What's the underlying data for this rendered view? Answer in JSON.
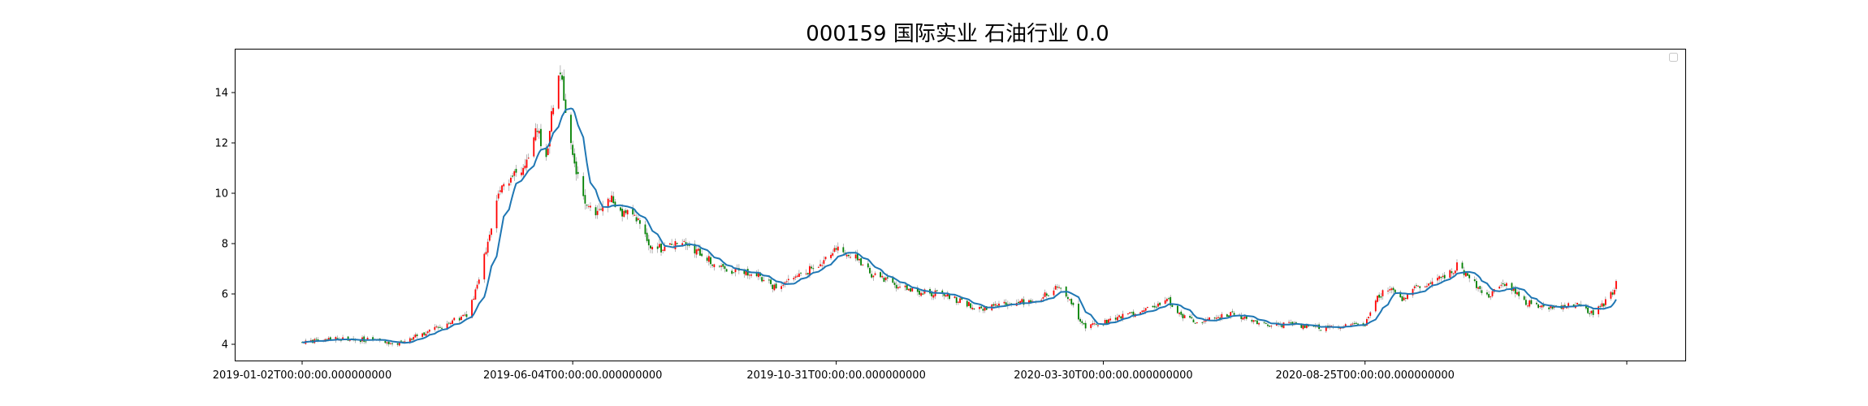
{
  "chart_data": {
    "type": "candlestick",
    "title": "000159 国际实业 石油行业 0.0",
    "xlabel": "",
    "ylabel": "",
    "ylim": [
      3.3,
      15.6
    ],
    "y_ticks": [
      4,
      6,
      8,
      10,
      12,
      14
    ],
    "x_ticks": [
      {
        "label": "2019-01-02T00:00:00.000000000",
        "date": "2019-01-02"
      },
      {
        "label": "2019-06-04T00:00:00.000000000",
        "date": "2019-06-04"
      },
      {
        "label": "2019-10-31T00:00:00.000000000",
        "date": "2019-10-31"
      },
      {
        "label": "2020-03-30T00:00:00.000000000",
        "date": "2020-03-30"
      },
      {
        "label": "2020-08-25T00:00:00.000000000",
        "date": "2020-08-25"
      },
      {
        "label": "",
        "date": "2021-01-20"
      }
    ],
    "x_start": "2019-01-02",
    "x_end": "2021-01-14",
    "grid": false,
    "legend": {
      "placement": "top-right",
      "entries": []
    },
    "colors": {
      "up": "#ff0000",
      "down": "#008000",
      "ma": "#1f77b4"
    },
    "close_anchors": [
      [
        "2019-01-02",
        4.05
      ],
      [
        "2019-01-20",
        4.25
      ],
      [
        "2019-02-12",
        4.15
      ],
      [
        "2019-02-25",
        4.0
      ],
      [
        "2019-03-10",
        4.4
      ],
      [
        "2019-03-25",
        4.8
      ],
      [
        "2019-04-05",
        5.2
      ],
      [
        "2019-04-12",
        6.5
      ],
      [
        "2019-04-18",
        8.5
      ],
      [
        "2019-04-25",
        10.3
      ],
      [
        "2019-05-03",
        10.9
      ],
      [
        "2019-05-10",
        11.2
      ],
      [
        "2019-05-15",
        12.6
      ],
      [
        "2019-05-20",
        11.4
      ],
      [
        "2019-05-25",
        14.2
      ],
      [
        "2019-05-28",
        14.8
      ],
      [
        "2019-06-01",
        12.5
      ],
      [
        "2019-06-06",
        10.8
      ],
      [
        "2019-06-11",
        9.5
      ],
      [
        "2019-06-17",
        9.1
      ],
      [
        "2019-06-25",
        9.8
      ],
      [
        "2019-07-01",
        9.3
      ],
      [
        "2019-07-10",
        9.0
      ],
      [
        "2019-07-17",
        8.0
      ],
      [
        "2019-07-25",
        7.8
      ],
      [
        "2019-08-05",
        8.1
      ],
      [
        "2019-08-15",
        7.6
      ],
      [
        "2019-08-25",
        7.1
      ],
      [
        "2019-09-05",
        6.9
      ],
      [
        "2019-09-15",
        6.8
      ],
      [
        "2019-09-25",
        6.3
      ],
      [
        "2019-10-05",
        6.5
      ],
      [
        "2019-10-15",
        6.9
      ],
      [
        "2019-10-25",
        7.4
      ],
      [
        "2019-11-01",
        7.8
      ],
      [
        "2019-11-10",
        7.5
      ],
      [
        "2019-11-20",
        6.8
      ],
      [
        "2019-12-01",
        6.4
      ],
      [
        "2019-12-15",
        6.1
      ],
      [
        "2019-12-28",
        6.0
      ],
      [
        "2020-01-10",
        5.7
      ],
      [
        "2020-01-20",
        5.4
      ],
      [
        "2020-02-01",
        5.6
      ],
      [
        "2020-02-15",
        5.7
      ],
      [
        "2020-02-25",
        5.9
      ],
      [
        "2020-03-05",
        6.3
      ],
      [
        "2020-03-10",
        5.9
      ],
      [
        "2020-03-15",
        5.2
      ],
      [
        "2020-03-20",
        4.7
      ],
      [
        "2020-04-01",
        4.9
      ],
      [
        "2020-04-10",
        5.1
      ],
      [
        "2020-04-20",
        5.3
      ],
      [
        "2020-04-28",
        5.5
      ],
      [
        "2020-05-05",
        5.8
      ],
      [
        "2020-05-12",
        5.2
      ],
      [
        "2020-05-20",
        4.9
      ],
      [
        "2020-06-01",
        5.0
      ],
      [
        "2020-06-10",
        5.2
      ],
      [
        "2020-06-20",
        5.05
      ],
      [
        "2020-07-01",
        4.75
      ],
      [
        "2020-07-15",
        4.8
      ],
      [
        "2020-08-01",
        4.65
      ],
      [
        "2020-08-15",
        4.75
      ],
      [
        "2020-08-25",
        4.75
      ],
      [
        "2020-09-01",
        5.9
      ],
      [
        "2020-09-08",
        6.2
      ],
      [
        "2020-09-15",
        5.8
      ],
      [
        "2020-09-22",
        6.3
      ],
      [
        "2020-09-30",
        6.4
      ],
      [
        "2020-10-10",
        6.7
      ],
      [
        "2020-10-16",
        7.1
      ],
      [
        "2020-10-25",
        6.5
      ],
      [
        "2020-11-02",
        5.9
      ],
      [
        "2020-11-10",
        6.4
      ],
      [
        "2020-11-15",
        6.3
      ],
      [
        "2020-11-23",
        5.7
      ],
      [
        "2020-12-03",
        5.5
      ],
      [
        "2020-12-10",
        5.4
      ],
      [
        "2020-12-20",
        5.6
      ],
      [
        "2020-12-25",
        5.5
      ],
      [
        "2021-01-01",
        5.2
      ],
      [
        "2021-01-10",
        5.8
      ],
      [
        "2021-01-14",
        6.4
      ]
    ]
  }
}
